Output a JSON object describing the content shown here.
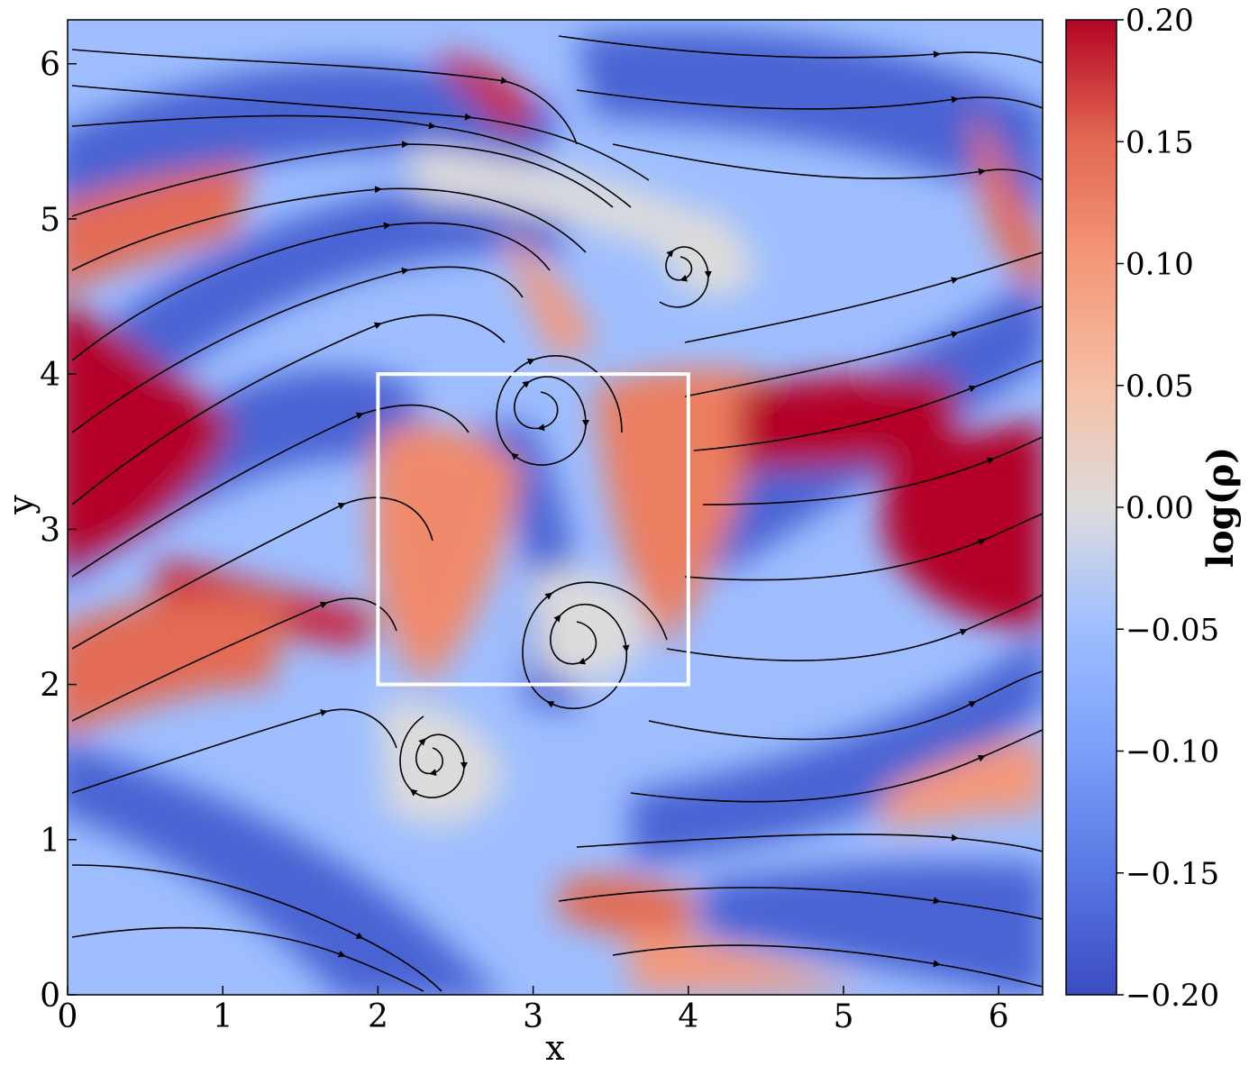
{
  "chart_data": {
    "type": "heatmap",
    "title": "",
    "xlabel": "x",
    "ylabel": "y",
    "xlim": [
      0,
      6.283
    ],
    "ylim": [
      0,
      6.283
    ],
    "x_ticks": [
      "0",
      "1",
      "2",
      "3",
      "4",
      "5",
      "6"
    ],
    "y_ticks": [
      "0",
      "1",
      "2",
      "3",
      "4",
      "5",
      "6"
    ],
    "x_tick_values": [
      0,
      1,
      2,
      3,
      4,
      5,
      6
    ],
    "y_tick_values": [
      0,
      1,
      2,
      3,
      4,
      5,
      6
    ],
    "colorbar": {
      "label": "log(ρ)",
      "range": [
        -0.2,
        0.2
      ],
      "colormap": "coolwarm",
      "ticks": [
        "0.20",
        "0.15",
        "0.10",
        "0.05",
        "0.00",
        "−0.05",
        "−0.10",
        "−0.15",
        "−0.20"
      ],
      "tick_values": [
        0.2,
        0.15,
        0.1,
        0.05,
        0.0,
        -0.05,
        -0.1,
        -0.15,
        -0.2
      ]
    },
    "overlay": "streamlines",
    "highlight_box": {
      "x": [
        2,
        4
      ],
      "y": [
        2,
        4
      ],
      "color": "#ffffff"
    },
    "features": [
      {
        "kind": "vortex",
        "x": 2.9,
        "y": 3.85
      },
      {
        "kind": "vortex",
        "x": 3.35,
        "y": 2.45
      },
      {
        "kind": "vortex",
        "x": 2.35,
        "y": 1.55
      },
      {
        "kind": "vortex",
        "x": 4.0,
        "y": 4.75
      }
    ]
  },
  "colors": {
    "red": "#b40426",
    "white": "#dddcdc",
    "blue": "#3b4cc0",
    "streamline": "#000000",
    "box": "#ffffff"
  }
}
